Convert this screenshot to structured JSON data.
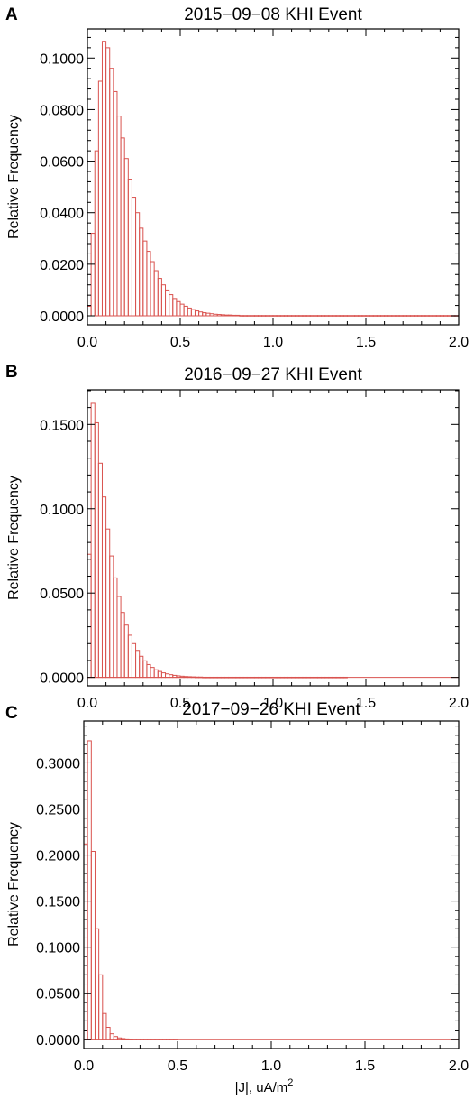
{
  "chart_data": [
    {
      "panel": "A",
      "type": "bar",
      "title": "2015−09−08 KHI Event",
      "xlabel": "",
      "ylabel": "Relative Frequency",
      "xlim": [
        0,
        2.0
      ],
      "ylim": [
        -0.0035,
        0.1113
      ],
      "xticks": [
        "0.0",
        "0.5",
        "1.0",
        "1.5",
        "2.0"
      ],
      "yticks": [
        "0.0000",
        "0.0200",
        "0.0400",
        "0.0600",
        "0.0800",
        "0.1000"
      ],
      "bin_width": 0.02,
      "values": [
        0.0037,
        0.032,
        0.064,
        0.091,
        0.1065,
        0.104,
        0.096,
        0.087,
        0.0775,
        0.069,
        0.061,
        0.053,
        0.046,
        0.04,
        0.034,
        0.029,
        0.025,
        0.021,
        0.0175,
        0.0145,
        0.012,
        0.01,
        0.0082,
        0.0067,
        0.0055,
        0.0045,
        0.0037,
        0.003,
        0.0024,
        0.0019,
        0.0015,
        0.0012,
        0.001,
        0.0008,
        0.0006,
        0.0005,
        0.0004,
        0.0003,
        0.0003,
        0.0002,
        0.0002,
        0.0001,
        0.0001,
        0.0001,
        0.0001,
        0.0001,
        0.0001,
        0.0001,
        0.0001,
        0.0001,
        0.0001,
        0.0001,
        0.0001,
        0.0001,
        0.0001,
        0.0001,
        0.0001,
        0.0001,
        0.0001,
        0.0001,
        0.0001,
        0.0001,
        0.0001,
        0.0001,
        0.0001,
        0.0001,
        0.0001,
        0.0001,
        0.0001,
        0.0001,
        0.0001,
        0.0001,
        0.0001,
        0.0001,
        0.0001,
        0.0001,
        0.0001,
        0.0001,
        0.0001,
        0.0001,
        0.0001,
        0.0001,
        0.0001,
        0.0001,
        0.0001,
        0.0001,
        0.0001,
        0.0001,
        0.0001,
        0.0001,
        0.0001,
        0.0001,
        0.0001,
        0.0001,
        0.0001,
        0.0001,
        0.0001,
        0.0001,
        0.0001,
        0.0001
      ],
      "bar_color": "#d9534f",
      "grid": false,
      "legend": "none"
    },
    {
      "panel": "B",
      "type": "bar",
      "title": "2016−09−27 KHI Event",
      "xlabel": "",
      "ylabel": "Relative Frequency",
      "xlim": [
        0,
        2.0
      ],
      "ylim": [
        -0.005,
        0.1705
      ],
      "xticks": [
        "0.0",
        "0.5",
        "1.0",
        "1.5",
        "2.0"
      ],
      "yticks": [
        "0.0000",
        "0.0500",
        "0.1000",
        "0.1500"
      ],
      "bin_width": 0.02,
      "values": [
        0.073,
        0.1625,
        0.151,
        0.127,
        0.107,
        0.088,
        0.072,
        0.059,
        0.048,
        0.0385,
        0.031,
        0.025,
        0.02,
        0.016,
        0.0125,
        0.0098,
        0.0076,
        0.0059,
        0.0045,
        0.0035,
        0.0027,
        0.0021,
        0.0016,
        0.0012,
        0.0009,
        0.0007,
        0.0005,
        0.0004,
        0.0003,
        0.0002,
        0.0002,
        0.0001,
        0.0001,
        0.0001,
        0.0001,
        0.0001,
        0.0001,
        0.0001,
        0.0001,
        0.0001,
        0.0001,
        0.0001,
        0.0001,
        0.0001,
        0.0001,
        0.0001,
        0.0001,
        0.0001,
        0.0001,
        0.0001,
        0.0001,
        0.0001,
        0.0001,
        0.0001,
        0.0001,
        0.0001,
        0.0001,
        0.0001,
        0.0001,
        0.0001,
        0.0001,
        0.0001,
        0.0001,
        0.0001,
        0.0001,
        0.0001,
        0.0001,
        0.0001,
        0.0001,
        0.0001
      ],
      "bar_color": "#d9534f",
      "grid": false,
      "legend": "none"
    },
    {
      "panel": "C",
      "type": "bar",
      "title": "2017−09−26 KHI Event",
      "xlabel": "|J|, uA/m",
      "xlabel_superscript": "2",
      "ylabel": "Relative Frequency",
      "xlim": [
        0,
        2.0
      ],
      "ylim": [
        -0.01,
        0.3455
      ],
      "xticks": [
        "0.0",
        "0.5",
        "1.0",
        "1.5",
        "2.0"
      ],
      "yticks": [
        "0.0000",
        "0.0500",
        "0.1000",
        "0.1500",
        "0.2000",
        "0.2500",
        "0.3000"
      ],
      "bin_width": 0.02,
      "values": [
        0.212,
        0.324,
        0.204,
        0.12,
        0.07,
        0.028,
        0.013,
        0.006,
        0.003,
        0.0015,
        0.0008,
        0.0004,
        0.0002,
        0.0001,
        0.0001,
        0.0001,
        0.0001,
        0.0001,
        0.0001,
        0.0001,
        0.0001,
        0.0001,
        0.0001,
        0.0001,
        0.0001
      ],
      "bar_color": "#d9534f",
      "grid": false,
      "legend": "none"
    }
  ]
}
